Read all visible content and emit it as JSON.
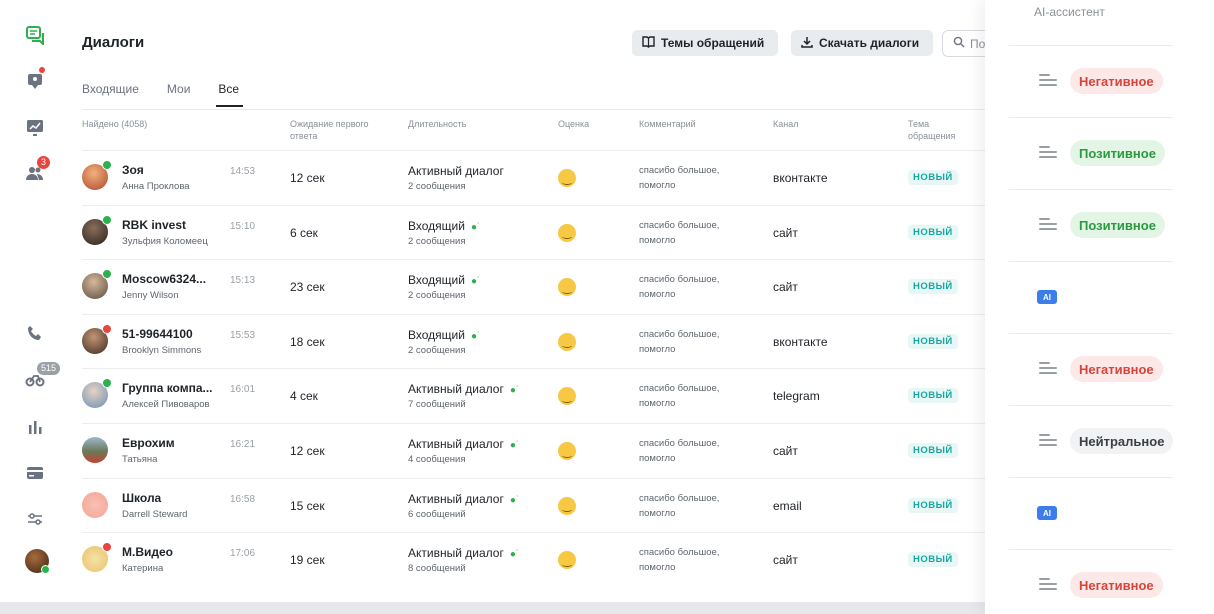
{
  "page": {
    "title": "Диалоги",
    "buttons": {
      "topics": "Темы обращений",
      "download": "Скачать диалоги"
    },
    "search_placeholder": "По",
    "tabs": [
      "Входящие",
      "Мои",
      "Все"
    ],
    "active_tab": "Все"
  },
  "sidebar": {
    "badges": {
      "users": "3",
      "bikes": "515"
    }
  },
  "table": {
    "headers": {
      "found": "Найдено (4058)",
      "wait": "Ожидание первого ответа",
      "duration": "Длительность",
      "rating": "Оценка",
      "comment": "Комментарий",
      "channel": "Канал",
      "topic": "Тема обращения"
    },
    "rows": [
      {
        "name": "Зоя",
        "person": "Анна Проклова",
        "time": "14:53",
        "wait": "12 сек",
        "duration": "Активный диалог",
        "messages": "2 сообщения",
        "comment": "спасибо большое, помогло",
        "channel": "вконтакте",
        "topic": "НОВЫЙ"
      },
      {
        "name": "RBK invest",
        "person": "Зульфия Коломеец",
        "time": "15:10",
        "wait": "6 сек",
        "duration": "Входящий",
        "messages": "2 сообщения",
        "comment": "спасибо большое, помогло",
        "channel": "сайт",
        "topic": "НОВЫЙ"
      },
      {
        "name": "Moscow6324...",
        "person": "Jenny Wilson",
        "time": "15:13",
        "wait": "23 сек",
        "duration": "Входящий",
        "messages": "2 сообщения",
        "comment": "спасибо большое, помогло",
        "channel": "сайт",
        "topic": "НОВЫЙ"
      },
      {
        "name": "51-99644100",
        "person": "Brooklyn Simmons",
        "time": "15:53",
        "wait": "18 сек",
        "duration": "Входящий",
        "messages": "2 сообщения",
        "comment": "спасибо большое, помогло",
        "channel": "вконтакте",
        "topic": "НОВЫЙ"
      },
      {
        "name": "Группа компа...",
        "person": "Алексей Пивоваров",
        "time": "16:01",
        "wait": "4 сек",
        "duration": "Активный диалог",
        "messages": "7 сообщений",
        "comment": "спасибо большое, помогло",
        "channel": "telegram",
        "topic": "НОВЫЙ"
      },
      {
        "name": "Еврохим",
        "person": "Татьяна",
        "time": "16:21",
        "wait": "12 сек",
        "duration": "Активный диалог",
        "messages": "4 сообщения",
        "comment": "спасибо большое, помогло",
        "channel": "сайт",
        "topic": "НОВЫЙ"
      },
      {
        "name": "Школа",
        "person": "Darrell Steward",
        "time": "16:58",
        "wait": "15 сек",
        "duration": "Активный диалог",
        "messages": "6 сообщений",
        "comment": "спасибо большое, помогло",
        "channel": "email",
        "topic": "НОВЫЙ"
      },
      {
        "name": "М.Видео",
        "person": "Катерина",
        "time": "17:06",
        "wait": "19 сек",
        "duration": "Активный диалог",
        "messages": "8 сообщений",
        "comment": "спасибо большое, помогло",
        "channel": "сайт",
        "topic": "НОВЫЙ"
      }
    ]
  },
  "right_panel": {
    "title": "AI-ассистент",
    "items": [
      {
        "kind": "sentiment",
        "label": "Негативное",
        "tone": "negative"
      },
      {
        "kind": "sentiment",
        "label": "Позитивное",
        "tone": "positive"
      },
      {
        "kind": "sentiment",
        "label": "Позитивное",
        "tone": "positive"
      },
      {
        "kind": "ai",
        "label": "AI"
      },
      {
        "kind": "sentiment",
        "label": "Негативное",
        "tone": "negative"
      },
      {
        "kind": "sentiment",
        "label": "Нейтральное",
        "tone": "neutral"
      },
      {
        "kind": "ai",
        "label": "AI"
      },
      {
        "kind": "sentiment",
        "label": "Негативное",
        "tone": "negative"
      }
    ]
  },
  "colors": {
    "accent_green": "#2bb24c",
    "tag_teal": "#1aa6a0",
    "negative": "#d6453a",
    "positive": "#2b9a3f",
    "ai_blue": "#3b7de9"
  }
}
